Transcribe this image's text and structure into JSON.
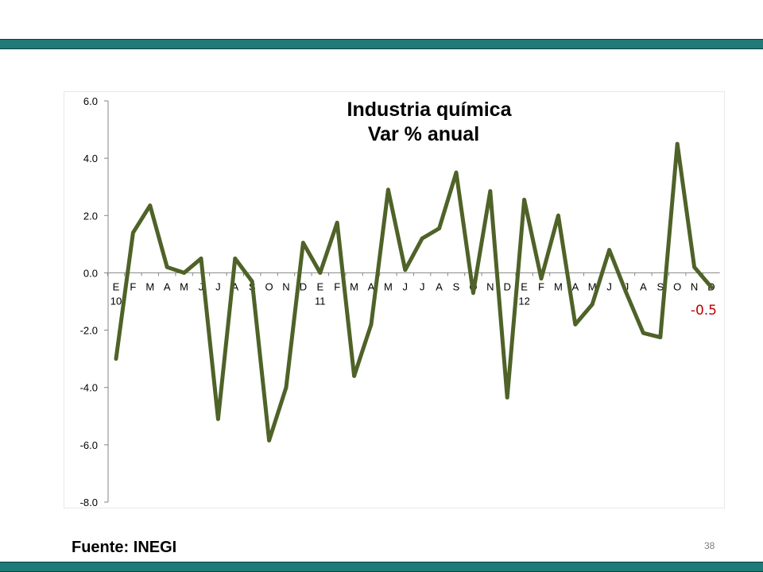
{
  "source_note": "Fuente: INEGI",
  "page_number": "38",
  "colors": {
    "band": "#1f7a78",
    "line": "#4f6228",
    "last_label": "#c00000"
  },
  "chart_data": {
    "type": "line",
    "title": "Industria química",
    "subtitle": "Var % anual",
    "xlabel": "",
    "ylabel": "",
    "ylim": [
      -8,
      6
    ],
    "yticks": [
      "6.0",
      "4.0",
      "2.0",
      "0.0",
      "-2.0",
      "-4.0",
      "-6.0",
      "-8.0"
    ],
    "ytick_values": [
      6,
      4,
      2,
      0,
      -2,
      -4,
      -6,
      -8
    ],
    "grid": false,
    "categories": [
      "E",
      "F",
      "M",
      "A",
      "M",
      "J",
      "J",
      "A",
      "S",
      "O",
      "N",
      "D",
      "E",
      "F",
      "M",
      "A",
      "M",
      "J",
      "J",
      "A",
      "S",
      "O",
      "N",
      "D",
      "E",
      "F",
      "M",
      "A",
      "M",
      "J",
      "J",
      "A",
      "S",
      "O",
      "N",
      "D"
    ],
    "year_labels": [
      {
        "index": 0,
        "label": "10"
      },
      {
        "index": 12,
        "label": "11"
      },
      {
        "index": 24,
        "label": "12"
      }
    ],
    "series": [
      {
        "values": [
          -3.0,
          1.4,
          2.35,
          0.2,
          0.0,
          0.5,
          -5.1,
          0.5,
          -0.3,
          -5.85,
          -4.0,
          1.05,
          0.0,
          1.75,
          -3.6,
          -1.8,
          2.9,
          0.1,
          1.2,
          1.55,
          3.5,
          -0.7,
          2.85,
          -4.35,
          2.55,
          -0.2,
          2.0,
          -1.8,
          -1.1,
          0.8,
          -0.7,
          -2.1,
          -2.25,
          4.5,
          0.2,
          -0.5
        ]
      }
    ],
    "last_value_label": "-0.5"
  }
}
